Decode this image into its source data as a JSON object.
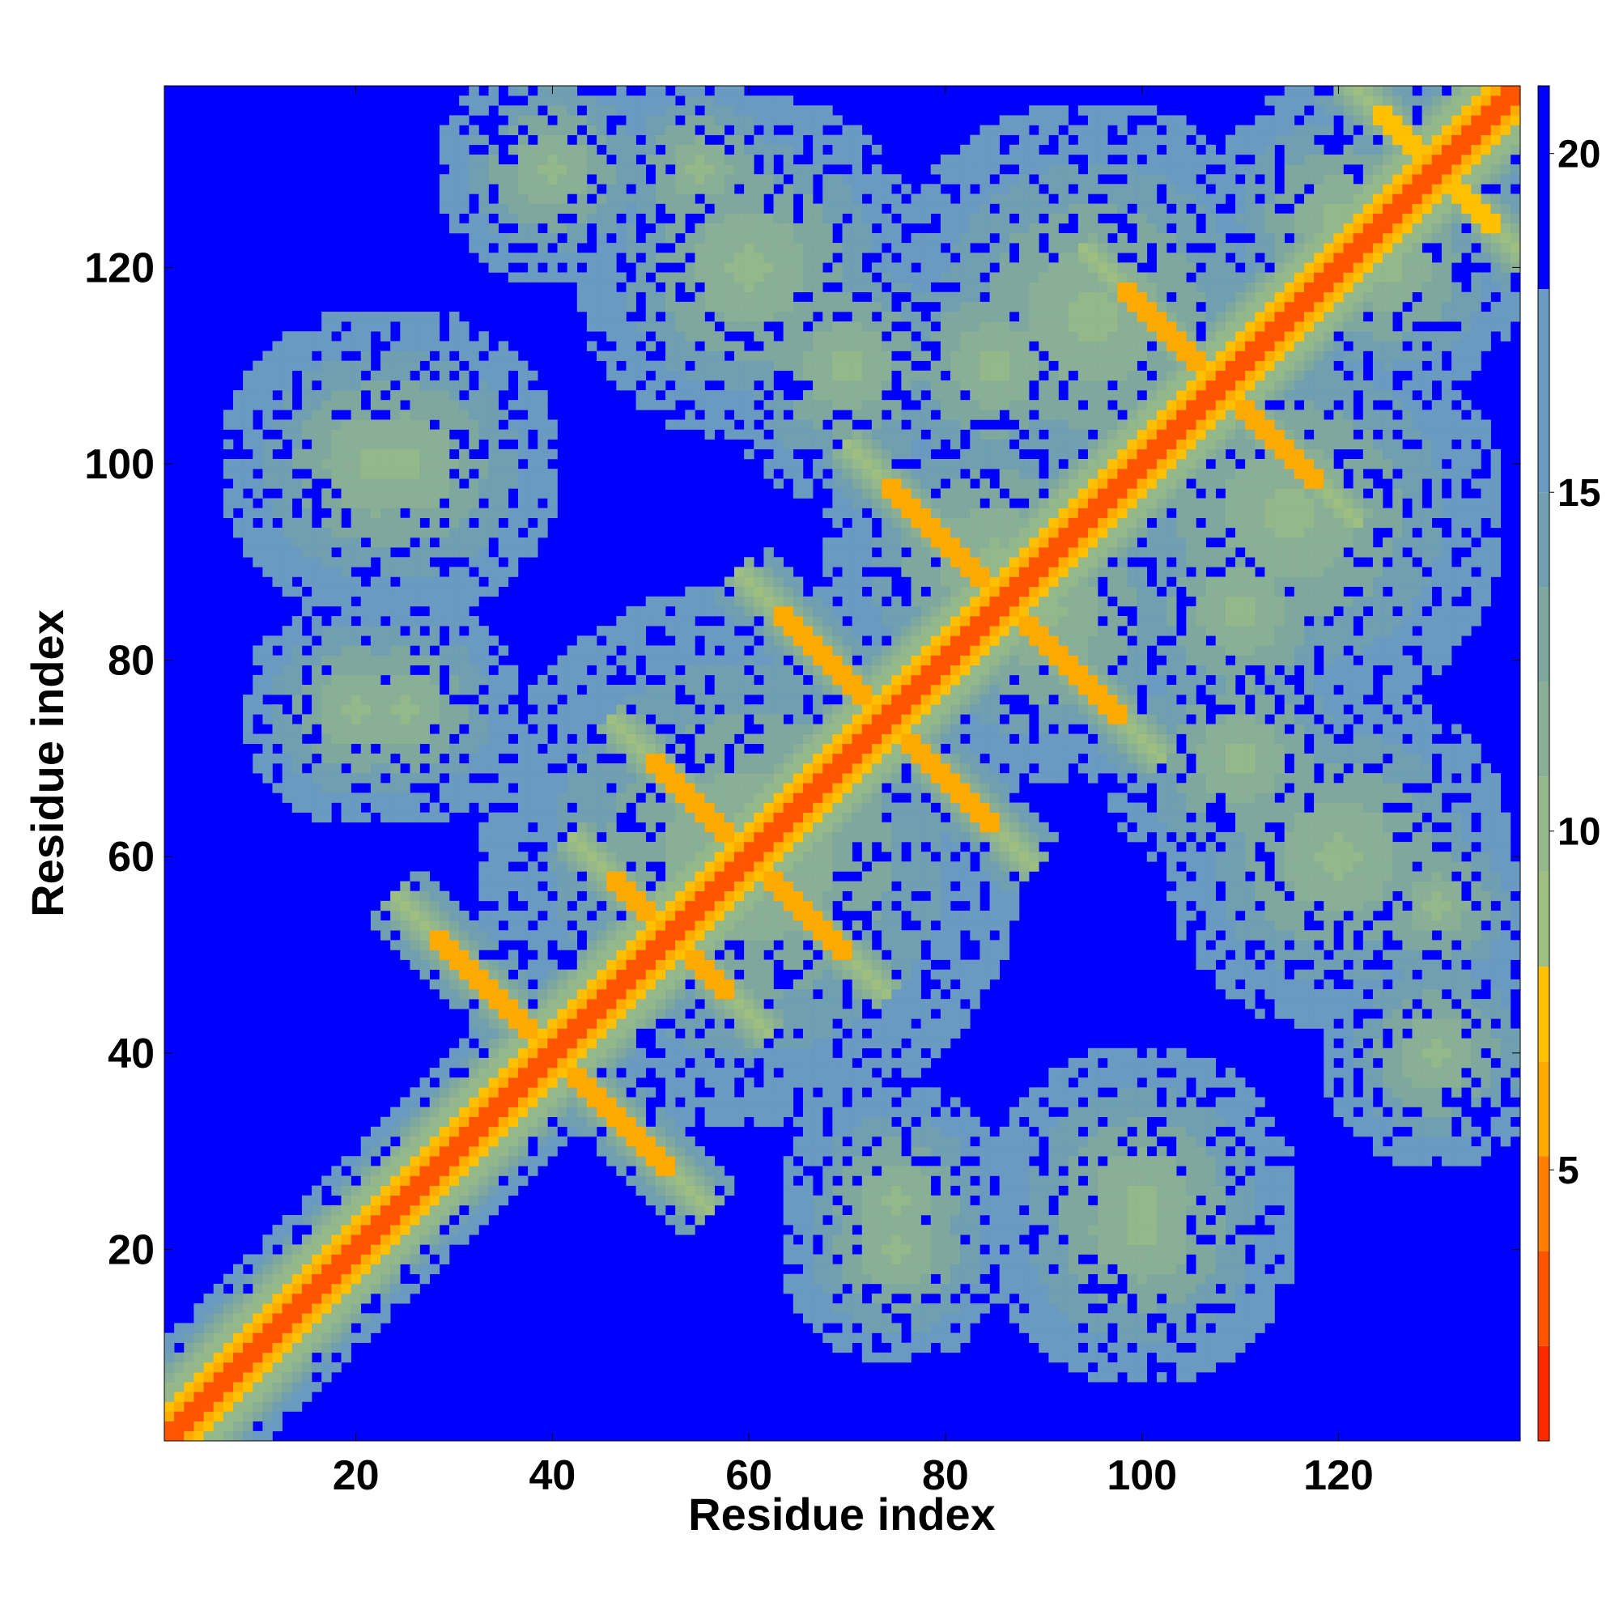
{
  "chart_data": {
    "type": "heatmap",
    "title": "",
    "xlabel": "Residue index",
    "ylabel": "Residue index",
    "xlim": [
      1,
      138
    ],
    "ylim": [
      1,
      138
    ],
    "x_ticks": [
      20,
      40,
      60,
      80,
      100,
      120
    ],
    "y_ticks": [
      20,
      40,
      60,
      80,
      100,
      120
    ],
    "matrix_size": 138,
    "colorbar": {
      "range": [
        1,
        21
      ],
      "ticks": [
        5,
        10,
        15,
        20
      ],
      "colors": [
        "#ff0000",
        "#ff2a00",
        "#ff5500",
        "#ff7f00",
        "#ffaa00",
        "#ffc000",
        "#9fbf80",
        "#94b88a",
        "#89b094",
        "#7ea89e",
        "#6f9fb0",
        "#6a9ac0",
        "#0000ff"
      ],
      "color_stops": [
        1,
        2.4,
        3.8,
        5.2,
        6.6,
        8,
        9.4,
        10.8,
        12.2,
        13.6,
        15,
        18,
        20
      ]
    },
    "description_values": {
      "diagonal_distance": 3.8,
      "helix_i_i4_distance": 6.2,
      "background_distance": 21
    },
    "contacts": [
      {
        "label": "beta-sheet anti-diagonal",
        "center_x": 40,
        "center_y": 40,
        "half_length": 12,
        "orientation": "anti",
        "value": 5.5
      },
      {
        "label": "beta-sheet anti-diagonal",
        "center_x": 52,
        "center_y": 52,
        "half_length": 6,
        "orientation": "anti",
        "value": 6
      },
      {
        "label": "beta-sheet anti-diagonal",
        "center_x": 60,
        "center_y": 60,
        "half_length": 10,
        "orientation": "anti",
        "value": 5.5
      },
      {
        "label": "beta-sheet anti-diagonal",
        "center_x": 74,
        "center_y": 74,
        "half_length": 11,
        "orientation": "anti",
        "value": 5.5
      },
      {
        "label": "beta-sheet anti-diagonal",
        "center_x": 86,
        "center_y": 86,
        "half_length": 12,
        "orientation": "anti",
        "value": 5.5
      },
      {
        "label": "beta-sheet anti-diagonal",
        "center_x": 108,
        "center_y": 108,
        "half_length": 10,
        "orientation": "anti",
        "value": 6
      },
      {
        "label": "beta-sheet anti-diagonal",
        "center_x": 130,
        "center_y": 130,
        "half_length": 6,
        "orientation": "anti",
        "value": 7
      }
    ]
  }
}
